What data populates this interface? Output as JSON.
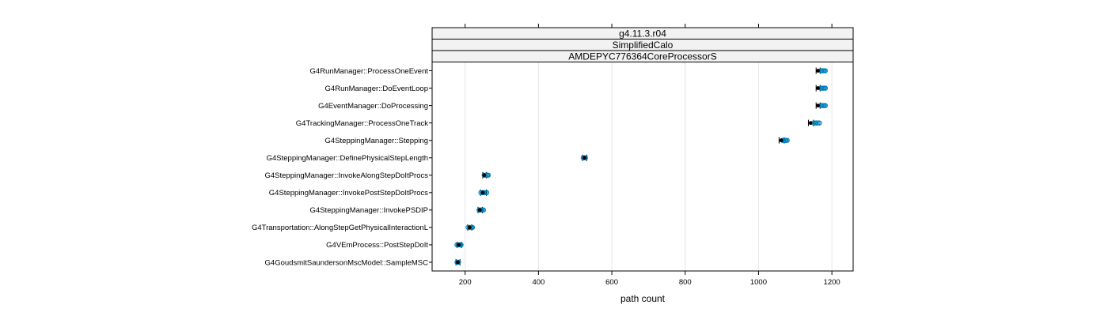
{
  "chart_data": {
    "type": "scatter",
    "strips": [
      "g4.11.3.r04",
      "SimplifiedCalo",
      "AMDEPYC776364CoreProcessorS"
    ],
    "xlabel": "path count",
    "xlim": [
      110,
      1258
    ],
    "xticks": [
      200,
      400,
      600,
      800,
      1000,
      1200
    ],
    "grid": true,
    "categories": [
      "G4GoudsmitSaundersonMscModel::SampleMSC",
      "G4VEmProcess::PostStepDoIt",
      "G4Transportation::AlongStepGetPhysicalInteractionL",
      "G4SteppingManager::InvokePSDIP",
      "G4SteppingManager::InvokePostStepDoItProcs",
      "G4SteppingManager::InvokeAlongStepDoItProcs",
      "G4SteppingManager::DefinePhysicalStepLength",
      "G4SteppingManager::Stepping",
      "G4TrackingManager::ProcessOneTrack",
      "G4EventManager::DoProcessing",
      "G4RunManager::DoEventLoop",
      "G4RunManager::ProcessOneEvent"
    ],
    "series": [
      {
        "name": "",
        "role": "baseline-mean",
        "values": [
          180,
          183,
          212,
          240,
          248,
          252,
          525,
          1062,
          1142,
          1162,
          1162,
          1162
        ]
      },
      {
        "name": "",
        "role": "baseline-range",
        "low": [
          175,
          178,
          207,
          235,
          242,
          248,
          520,
          1056,
          1136,
          1157,
          1157,
          1157
        ],
        "high": [
          186,
          190,
          218,
          247,
          258,
          258,
          532,
          1070,
          1150,
          1168,
          1168,
          1168
        ]
      },
      {
        "name": "",
        "role": "samples",
        "values": [
          [
            178,
            180,
            182
          ],
          [
            178,
            181,
            184,
            187,
            189
          ],
          [
            208,
            212,
            215,
            218,
            220
          ],
          [
            238,
            241,
            244,
            247,
            250
          ],
          [
            243,
            247,
            251,
            255,
            259
          ],
          [
            252,
            255,
            258,
            261,
            263
          ],
          [
            522,
            525,
            528
          ],
          [
            1066,
            1069,
            1072,
            1075,
            1078
          ],
          [
            1150,
            1154,
            1158,
            1162,
            1166
          ],
          [
            1170,
            1173,
            1176,
            1179,
            1182
          ],
          [
            1170,
            1173,
            1176,
            1179,
            1182
          ],
          [
            1170,
            1173,
            1176,
            1179,
            1182
          ]
        ]
      }
    ]
  },
  "colors": {
    "sample": "#0080bb",
    "mean": "#000000",
    "grid": "#e6e6e6",
    "strip_bg": "#f2f2f2",
    "frame": "#000000"
  }
}
